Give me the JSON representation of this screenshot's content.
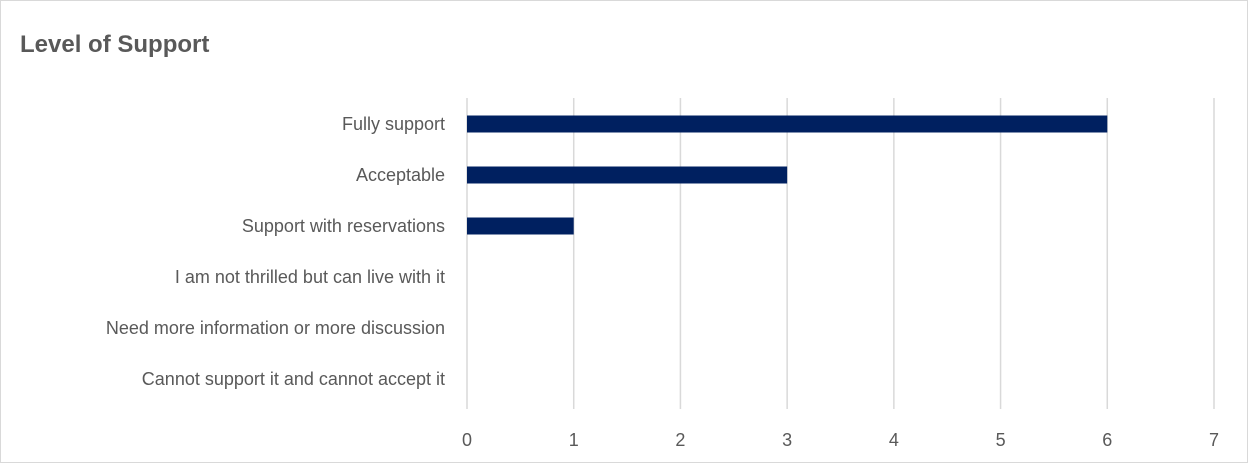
{
  "chart_data": {
    "type": "bar",
    "orientation": "horizontal",
    "title": "Level of Support",
    "categories": [
      "Fully support",
      "Acceptable",
      "Support with reservations",
      "I am not thrilled but can live with it",
      "Need more information or more discussion",
      "Cannot support it and cannot accept it"
    ],
    "values": [
      6,
      3,
      1,
      0,
      0,
      0
    ],
    "xlim": [
      0,
      7
    ],
    "xticks": [
      "0",
      "1",
      "2",
      "3",
      "4",
      "5",
      "6",
      "7"
    ],
    "xlabel": "",
    "ylabel": "",
    "grid": "vertical",
    "legend": "none",
    "bar_color": "#002060",
    "grid_color": "#d9d9d9"
  }
}
